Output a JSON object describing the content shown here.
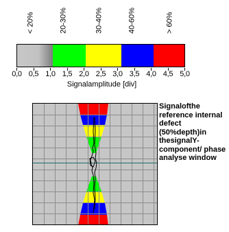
{
  "bands": [
    {
      "label": "< 20%"
    },
    {
      "label": "20-30%"
    },
    {
      "label": "30-40%"
    },
    {
      "label": "40-60%"
    },
    {
      "label": "> 60%"
    }
  ],
  "scale": {
    "colors": [
      "#c2c2c2",
      "#00ff00",
      "#ffff00",
      "#0000ff",
      "#ff0000"
    ],
    "ticks": [
      "0,0",
      "0,5",
      "1,0",
      "1,5",
      "2,0",
      "2,5",
      "3,0",
      "3,5",
      "4,0",
      "4,5",
      "5,0"
    ],
    "axis_label": "Signalamplitude [div]"
  },
  "window": {
    "description": "Signalofthe reference internal defect (50%depth)in thesignalY-component/ phase analyse window"
  }
}
